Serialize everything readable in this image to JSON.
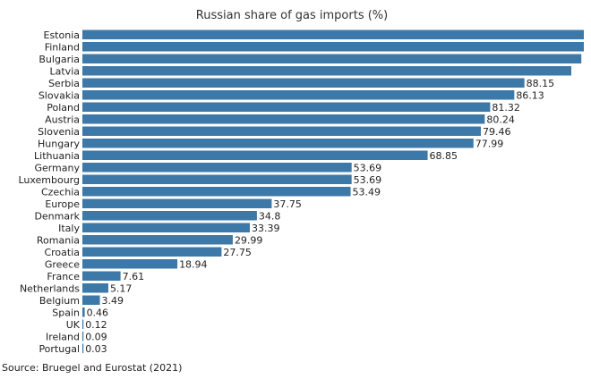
{
  "chart_data": {
    "type": "bar",
    "orientation": "horizontal",
    "title": "Russian share of gas imports (%)",
    "source": "Source: Bruegel and Eurostat (2021)",
    "color": "#3c78a8",
    "categories": [
      "Estonia",
      "Finland",
      "Bulgaria",
      "Latvia",
      "Serbia",
      "Slovakia",
      "Poland",
      "Austria",
      "Slovenia",
      "Hungary",
      "Lithuania",
      "Germany",
      "Luxembourg",
      "Czechia",
      "Europe",
      "Denmark",
      "Italy",
      "Romania",
      "Croatia",
      "Greece",
      "France",
      "Netherlands",
      "Belgium",
      "Spain",
      "UK",
      "Ireland",
      "Portugal"
    ],
    "values": [
      100,
      100,
      99.5,
      97.5,
      88.15,
      86.13,
      81.32,
      80.24,
      79.46,
      77.99,
      68.85,
      53.69,
      53.69,
      53.49,
      37.75,
      34.8,
      33.39,
      29.99,
      27.75,
      18.94,
      7.61,
      5.17,
      3.49,
      0.46,
      0.12,
      0.09,
      0.03
    ],
    "data_labels": [
      "",
      "",
      "",
      "",
      "88.15",
      "86.13",
      "81.32",
      "80.24",
      "79.46",
      "77.99",
      "68.85",
      "53.69",
      "53.69",
      "53.49",
      "37.75",
      "34.8",
      "33.39",
      "29.99",
      "27.75",
      "18.94",
      "7.61",
      "5.17",
      "3.49",
      "0.46",
      "0.12",
      "0.09",
      "0.03"
    ],
    "xlim": [
      0,
      100
    ],
    "grid": false,
    "legend": "none"
  }
}
